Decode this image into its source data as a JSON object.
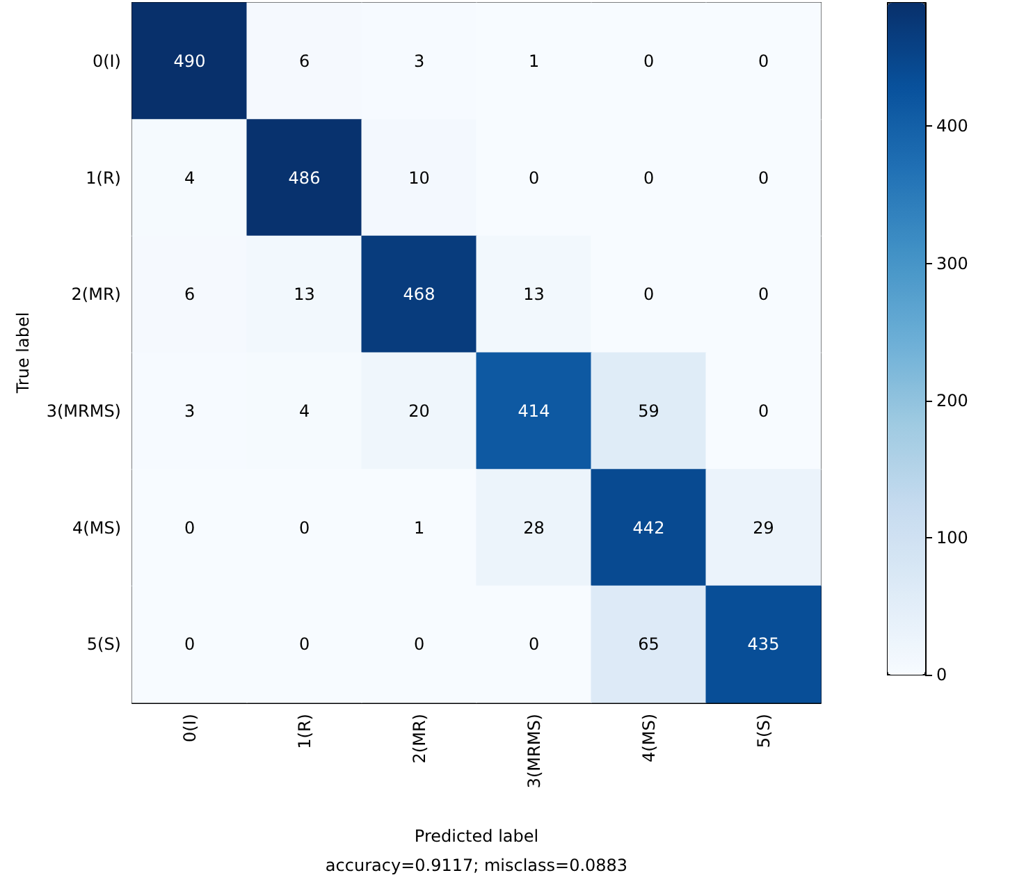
{
  "chart_data": {
    "type": "heatmap",
    "categories": [
      "0(I)",
      "1(R)",
      "2(MR)",
      "3(MRMS)",
      "4(MS)",
      "5(S)"
    ],
    "y_categories": [
      "0(I)",
      "1(R)",
      "2(MR)",
      "3(MRMS)",
      "4(MS)",
      "5(S)"
    ],
    "cells": [
      [
        490,
        6,
        3,
        1,
        0,
        0
      ],
      [
        4,
        486,
        10,
        0,
        0,
        0
      ],
      [
        6,
        13,
        468,
        13,
        0,
        0
      ],
      [
        3,
        4,
        20,
        414,
        59,
        0
      ],
      [
        0,
        0,
        1,
        28,
        442,
        29
      ],
      [
        0,
        0,
        0,
        0,
        65,
        435
      ]
    ],
    "data_labels": true,
    "clim": [
      0,
      490
    ],
    "cticks": [
      0,
      100,
      200,
      300,
      400
    ],
    "xlabel": "Predicted label",
    "ylabel": "True label",
    "annotations": [
      "accuracy=0.9117; misclass=0.0883"
    ]
  }
}
